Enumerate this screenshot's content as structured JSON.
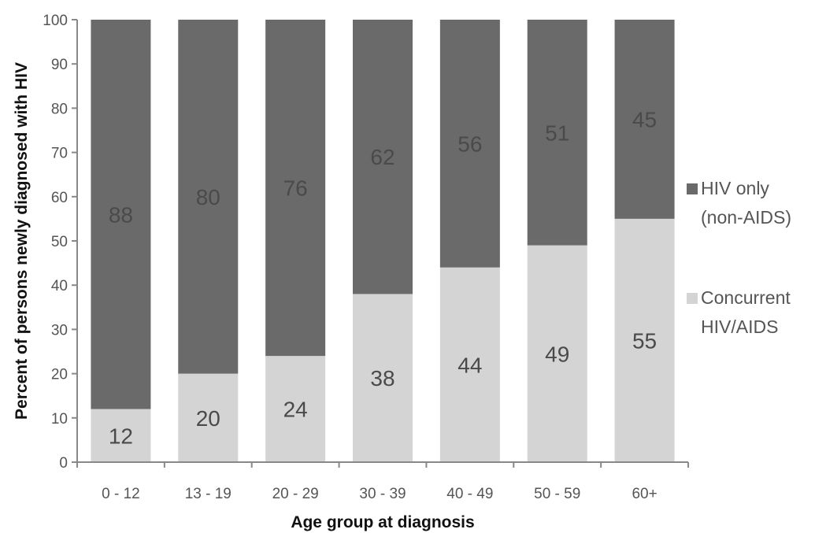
{
  "chart_data": {
    "type": "bar",
    "stacked": true,
    "categories": [
      "0 - 12",
      "13 - 19",
      "20 - 29",
      "30 - 39",
      "40 - 49",
      "50 - 59",
      "60+"
    ],
    "series": [
      {
        "name": "Concurrent HIV/AIDS",
        "name_lines": [
          "Concurrent",
          "HIV/AIDS"
        ],
        "color": "#d4d4d4",
        "values": [
          12,
          20,
          24,
          38,
          44,
          49,
          55
        ]
      },
      {
        "name": "HIV only (non-AIDS)",
        "name_lines": [
          "HIV only",
          "(non-AIDS)"
        ],
        "color": "#6a6a6a",
        "values": [
          88,
          80,
          76,
          62,
          56,
          51,
          45
        ]
      }
    ],
    "xlabel": "Age group at diagnosis",
    "ylabel": "Percent of persons newly diagnosed with HIV",
    "ylim": [
      0,
      100
    ],
    "yticks": [
      0,
      10,
      20,
      30,
      40,
      50,
      60,
      70,
      80,
      90,
      100
    ],
    "grid": false,
    "legend": "right"
  }
}
